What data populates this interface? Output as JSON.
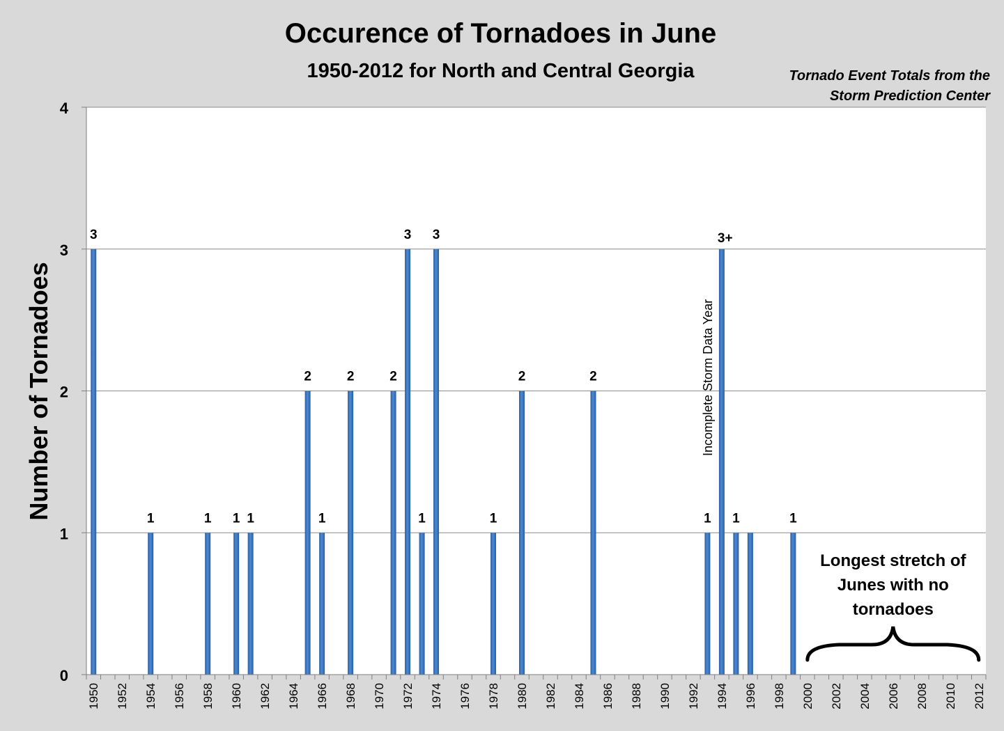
{
  "chart_data": {
    "type": "bar",
    "title": "Occurence of Tornadoes in June",
    "subtitle": "1950-2012 for North and Central Georgia",
    "source_line_1": "Tornado  Event Totals from the",
    "source_line_2": "Storm Prediction Center",
    "xlabel": "",
    "ylabel": "Number of Tornadoes",
    "ylim": [
      0,
      4
    ],
    "yticks": [
      "0",
      "1",
      "2",
      "3",
      "4"
    ],
    "grid": "horizontal",
    "categories": [
      "1950",
      "1951",
      "1952",
      "1953",
      "1954",
      "1955",
      "1956",
      "1957",
      "1958",
      "1959",
      "1960",
      "1961",
      "1962",
      "1963",
      "1964",
      "1965",
      "1966",
      "1967",
      "1968",
      "1969",
      "1970",
      "1971",
      "1972",
      "1973",
      "1974",
      "1975",
      "1976",
      "1977",
      "1978",
      "1979",
      "1980",
      "1981",
      "1982",
      "1983",
      "1984",
      "1985",
      "1986",
      "1987",
      "1988",
      "1989",
      "1990",
      "1991",
      "1992",
      "1993",
      "1994",
      "1995",
      "1996",
      "1997",
      "1998",
      "1999",
      "2000",
      "2001",
      "2002",
      "2003",
      "2004",
      "2005",
      "2006",
      "2007",
      "2008",
      "2009",
      "2010",
      "2011",
      "2012"
    ],
    "xtick_labels": [
      "1950",
      "",
      "1952",
      "",
      "1954",
      "",
      "1956",
      "",
      "1958",
      "",
      "1960",
      "",
      "1962",
      "",
      "1964",
      "",
      "1966",
      "",
      "1968",
      "",
      "1970",
      "",
      "1972",
      "",
      "1974",
      "",
      "1976",
      "",
      "1978",
      "",
      "1980",
      "",
      "1982",
      "",
      "1984",
      "",
      "1986",
      "",
      "1988",
      "",
      "1990",
      "",
      "1992",
      "",
      "1994",
      "",
      "1996",
      "",
      "1998",
      "",
      "2000",
      "",
      "2002",
      "",
      "2004",
      "",
      "2006",
      "",
      "2008",
      "",
      "2010",
      "",
      "2012"
    ],
    "values": [
      3,
      0,
      0,
      0,
      1,
      0,
      0,
      0,
      1,
      0,
      1,
      1,
      0,
      0,
      0,
      2,
      1,
      0,
      2,
      0,
      0,
      2,
      3,
      1,
      3,
      0,
      0,
      0,
      1,
      0,
      2,
      0,
      0,
      0,
      0,
      2,
      0,
      0,
      0,
      0,
      0,
      0,
      0,
      1,
      3,
      1,
      1,
      0,
      0,
      1,
      0,
      0,
      0,
      0,
      0,
      0,
      0,
      0,
      0,
      0,
      0,
      0,
      0
    ],
    "data_labels": [
      "3",
      "",
      "",
      "",
      "1",
      "",
      "",
      "",
      "1",
      "",
      "1",
      "1",
      "",
      "",
      "",
      "2",
      "1",
      "",
      "2",
      "",
      "",
      "2",
      "3",
      "1",
      "3",
      "",
      "",
      "",
      "1",
      "",
      "2",
      "",
      "",
      "",
      "",
      "2",
      "",
      "",
      "",
      "",
      "",
      "",
      "",
      "1",
      "3+",
      "1",
      "",
      "",
      "",
      "1",
      "",
      "",
      "",
      "",
      "",
      "",
      "",
      "",
      "",
      "",
      "",
      "",
      ""
    ],
    "annotations": [
      {
        "text": "Incomplete Storm Data Year",
        "year": "1994"
      },
      {
        "text": "Longest stretch of Junes with no tornadoes",
        "from": "2000",
        "to": "2012"
      }
    ],
    "annotation_lines": [
      "Longest stretch of",
      "Junes with no",
      "tornadoes"
    ],
    "bar_color": "#3b78c4"
  }
}
